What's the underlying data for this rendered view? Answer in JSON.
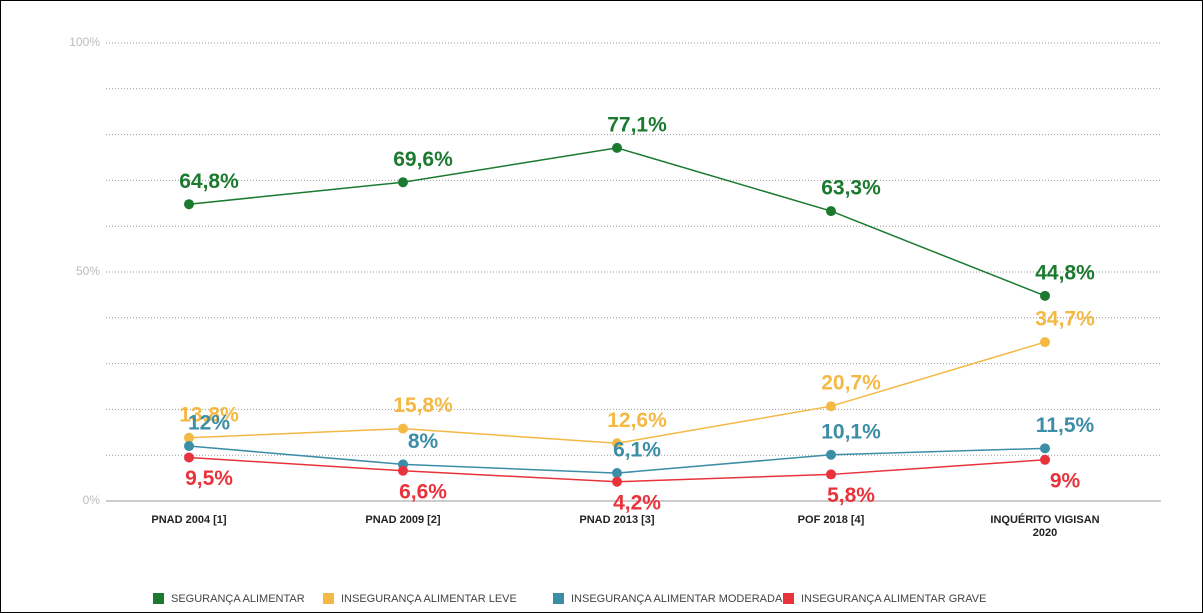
{
  "chart_data": {
    "type": "line",
    "categories": [
      "PNAD 2004 [1]",
      "PNAD 2009 [2]",
      "PNAD 2013 [3]",
      "POF 2018 [4]",
      "INQUÉRITO VIGISAN 2020"
    ],
    "series": [
      {
        "name": "SEGURANÇA ALIMENTAR",
        "color": "#1b7a30",
        "values": [
          64.8,
          69.6,
          77.1,
          63.3,
          44.8
        ],
        "value_labels": [
          "64,8%",
          "69,6%",
          "77,1%",
          "63,3%",
          "44,8%"
        ]
      },
      {
        "name": "INSEGURANÇA ALIMENTAR LEVE",
        "color": "#f4b945",
        "values": [
          13.8,
          15.8,
          12.6,
          20.7,
          34.7
        ],
        "value_labels": [
          "13,8%",
          "15,8%",
          "12,6%",
          "20,7%",
          "34,7%"
        ]
      },
      {
        "name": "INSEGURANÇA ALIMENTAR MODERADA",
        "color": "#3b8ea6",
        "values": [
          12,
          8,
          6.1,
          10.1,
          11.5
        ],
        "value_labels": [
          "12%",
          "8%",
          "6,1%",
          "10,1%",
          "11,5%"
        ]
      },
      {
        "name": "INSEGURANÇA ALIMENTAR GRAVE",
        "color": "#e8333c",
        "values": [
          9.5,
          6.6,
          4.2,
          5.8,
          9
        ],
        "value_labels": [
          "9,5%",
          "6,6%",
          "4,2%",
          "5,8%",
          "9%"
        ]
      }
    ],
    "ylim": [
      0,
      100
    ],
    "yticks": [
      {
        "value": 0,
        "label": "0%"
      },
      {
        "value": 50,
        "label": "50%"
      },
      {
        "value": 100,
        "label": "100%"
      }
    ],
    "minor_yticks": [
      10,
      20,
      30,
      40,
      60,
      70,
      80,
      90
    ],
    "grid": true,
    "legend": "bottom"
  }
}
